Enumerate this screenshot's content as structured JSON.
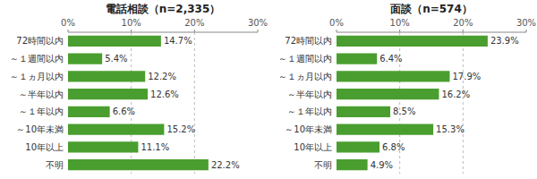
{
  "chart_data": [
    {
      "type": "bar",
      "orientation": "horizontal",
      "title": "電話相談（n=2,335）",
      "categories": [
        "72時間以内",
        "～１週間以内",
        "～１ヵ月以内",
        "～半年以内",
        "～１年以内",
        "～10年未満",
        "10年以上",
        "不明"
      ],
      "values": [
        14.7,
        5.4,
        12.2,
        12.6,
        6.6,
        15.2,
        11.1,
        22.2
      ],
      "value_labels": [
        "14.7%",
        "5.4%",
        "12.2%",
        "12.6%",
        "6.6%",
        "15.2%",
        "11.1%",
        "22.2%"
      ],
      "data_labels": true,
      "color": "#4a9e2f",
      "xlim": [
        0,
        30
      ],
      "xticks": [
        {
          "value": 0,
          "label": "0%"
        },
        {
          "value": 10,
          "label": "10%"
        },
        {
          "value": 20,
          "label": "20%"
        },
        {
          "value": 30,
          "label": "30%"
        }
      ],
      "grid": true
    },
    {
      "type": "bar",
      "orientation": "horizontal",
      "title": "面談（n=574）",
      "categories": [
        "72時間以内",
        "～１週間以内",
        "～１ヵ月以内",
        "～半年以内",
        "～１年以内",
        "～10年未満",
        "10年以上",
        "不明"
      ],
      "values": [
        23.9,
        6.4,
        17.9,
        16.2,
        8.5,
        15.3,
        6.8,
        4.9
      ],
      "value_labels": [
        "23.9%",
        "6.4%",
        "17.9%",
        "16.2%",
        "8.5%",
        "15.3%",
        "6.8%",
        "4.9%"
      ],
      "data_labels": true,
      "color": "#4a9e2f",
      "xlim": [
        0,
        30
      ],
      "xticks": [
        {
          "value": 0,
          "label": "0%"
        },
        {
          "value": 10,
          "label": "10%"
        },
        {
          "value": 20,
          "label": "20%"
        },
        {
          "value": 30,
          "label": "30%"
        }
      ],
      "grid": true
    }
  ]
}
